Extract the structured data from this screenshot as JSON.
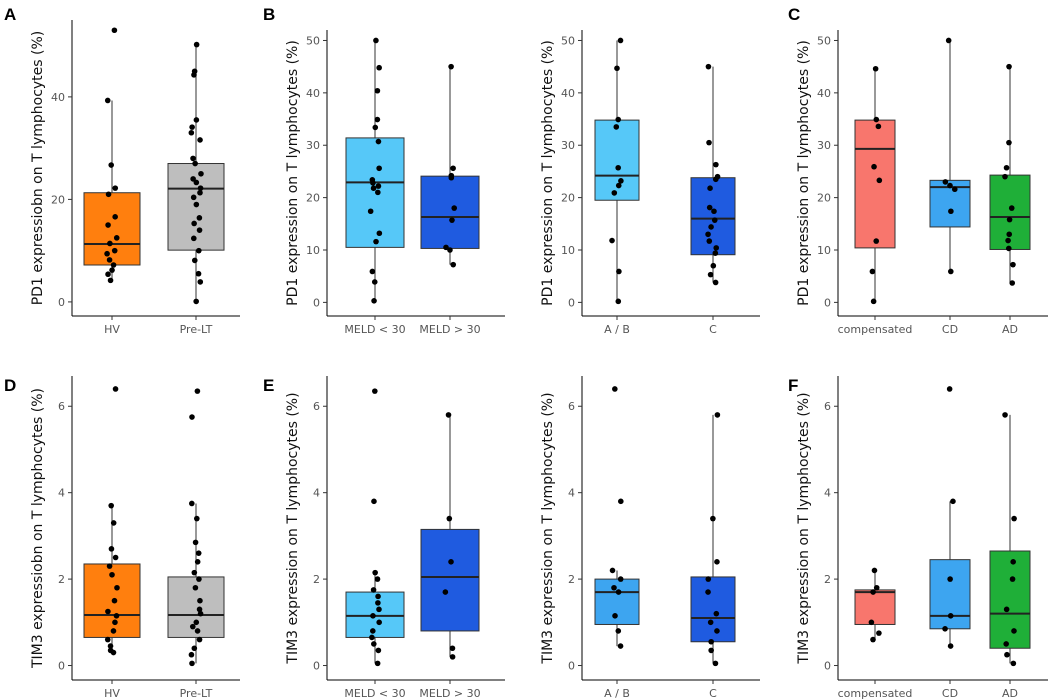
{
  "chart_data": [
    {
      "id": "A-pd1-hv-prelt",
      "letter": "A",
      "type": "box",
      "ylabel": "PD1 expressiobn on T lymphocytes (%)",
      "ylim": [
        0,
        55
      ],
      "yticks": [
        0,
        20,
        40
      ],
      "categories": [
        "HV",
        "Pre-LT"
      ],
      "boxes": [
        {
          "name": "HV",
          "color": "#FF7F0E",
          "q1": 7.2,
          "median": 11.3,
          "q3": 21.3,
          "wlow": 4.2,
          "whigh": 39.3,
          "points": [
            53.0,
            39.3,
            26.7,
            22.2,
            21.0,
            16.6,
            15.0,
            12.5,
            11.4,
            10.0,
            9.4,
            8.2,
            7.2,
            6.2,
            5.4,
            4.2
          ]
        },
        {
          "name": "Pre-LT",
          "color": "#BEBEBE",
          "q1": 10.1,
          "median": 22.1,
          "q3": 27.0,
          "wlow": 0.1,
          "whigh": 50.2,
          "points": [
            50.2,
            45.0,
            44.3,
            35.5,
            34.1,
            33.0,
            31.6,
            28.0,
            27.0,
            25.0,
            24.0,
            23.3,
            22.2,
            21.3,
            20.4,
            19.0,
            16.4,
            15.3,
            14.0,
            12.4,
            10.0,
            8.1,
            5.5,
            3.9,
            0.1
          ]
        }
      ]
    },
    {
      "id": "B1-pd1-meld",
      "letter": "B",
      "type": "box",
      "ylabel": "PD1 expression on T lymphocytes (%)",
      "ylim": [
        0,
        52
      ],
      "yticks": [
        0,
        10,
        20,
        30,
        40,
        50
      ],
      "categories": [
        "MELD < 30",
        "MELD > 30"
      ],
      "boxes": [
        {
          "name": "MELD < 30",
          "color": "#56C8F8",
          "q1": 10.5,
          "median": 22.9,
          "q3": 31.4,
          "wlow": 0.3,
          "whigh": 50.0,
          "points": [
            50.0,
            44.8,
            40.4,
            34.9,
            33.4,
            30.7,
            25.6,
            23.4,
            22.8,
            22.2,
            21.8,
            21.0,
            17.4,
            13.2,
            11.6,
            5.9,
            3.9,
            0.3
          ]
        },
        {
          "name": "MELD > 30",
          "color": "#1F5BE0",
          "q1": 10.3,
          "median": 16.3,
          "q3": 24.1,
          "wlow": 7.2,
          "whigh": 45.0,
          "points": [
            45.0,
            25.6,
            24.2,
            23.8,
            18.0,
            15.7,
            10.5,
            10.0,
            7.2
          ]
        }
      ]
    },
    {
      "id": "B2-pd1-child",
      "letter": "",
      "type": "box",
      "ylabel": "PD1 expression on T lymphocytes (%)",
      "ylim": [
        0,
        52
      ],
      "yticks": [
        0,
        10,
        20,
        30,
        40,
        50
      ],
      "categories": [
        "A / B",
        "C"
      ],
      "boxes": [
        {
          "name": "A / B",
          "color": "#56C8F8",
          "q1": 19.5,
          "median": 24.2,
          "q3": 34.8,
          "wlow": 0.2,
          "whigh": 50.0,
          "points": [
            50.0,
            44.7,
            34.9,
            33.5,
            25.7,
            23.2,
            22.3,
            20.9,
            11.8,
            5.9,
            0.2
          ]
        },
        {
          "name": "C",
          "color": "#1F5BE0",
          "q1": 9.1,
          "median": 16.0,
          "q3": 23.8,
          "wlow": 3.8,
          "whigh": 45.0,
          "points": [
            45.0,
            30.5,
            26.3,
            24.0,
            23.5,
            21.8,
            18.1,
            17.4,
            15.7,
            14.4,
            13.0,
            11.7,
            10.4,
            9.4,
            7.0,
            5.3,
            3.8
          ]
        }
      ]
    },
    {
      "id": "C-pd1-decomp",
      "letter": "C",
      "type": "box",
      "ylabel": "PD1 expression on T lymphocytes (%)",
      "ylim": [
        0,
        52
      ],
      "yticks": [
        0,
        10,
        20,
        30,
        40,
        50
      ],
      "categories": [
        "compensated",
        "CD",
        "AD"
      ],
      "boxes": [
        {
          "name": "compensated",
          "color": "#F8766D",
          "q1": 10.4,
          "median": 29.3,
          "q3": 34.8,
          "wlow": 0.2,
          "whigh": 44.6,
          "points": [
            44.6,
            34.9,
            33.6,
            25.9,
            23.3,
            11.7,
            5.9,
            0.2
          ]
        },
        {
          "name": "CD",
          "color": "#3DA5F0",
          "q1": 14.4,
          "median": 22.0,
          "q3": 23.3,
          "wlow": 5.9,
          "whigh": 50.0,
          "points": [
            50.0,
            23.0,
            22.3,
            21.6,
            17.4,
            5.9
          ]
        },
        {
          "name": "AD",
          "color": "#1FAF38",
          "q1": 10.1,
          "median": 16.3,
          "q3": 24.3,
          "wlow": 3.7,
          "whigh": 45.0,
          "points": [
            45.0,
            30.5,
            25.7,
            24.0,
            18.0,
            15.8,
            13.0,
            11.8,
            10.3,
            7.2,
            3.7
          ]
        }
      ]
    },
    {
      "id": "D-tim3-hv-prelt",
      "letter": "D",
      "type": "box",
      "ylabel": "TIM3 expressiobn on T lymphocytes (%)",
      "ylim": [
        0,
        6.7
      ],
      "yticks": [
        0,
        2,
        4,
        6
      ],
      "categories": [
        "HV",
        "Pre-LT"
      ],
      "boxes": [
        {
          "name": "HV",
          "color": "#FF7F0E",
          "q1": 0.65,
          "median": 1.17,
          "q3": 2.35,
          "wlow": 0.3,
          "whigh": 3.7,
          "points": [
            6.4,
            3.7,
            3.3,
            2.7,
            2.5,
            2.3,
            2.1,
            1.8,
            1.5,
            1.25,
            1.15,
            1.0,
            0.8,
            0.6,
            0.45,
            0.35,
            0.3
          ]
        },
        {
          "name": "Pre-LT",
          "color": "#BEBEBE",
          "q1": 0.65,
          "median": 1.17,
          "q3": 2.05,
          "wlow": 0.05,
          "whigh": 3.75,
          "points": [
            6.35,
            5.75,
            3.75,
            3.4,
            2.85,
            2.6,
            2.4,
            2.15,
            2.0,
            1.8,
            1.5,
            1.3,
            1.2,
            1.0,
            0.9,
            0.8,
            0.6,
            0.4,
            0.25,
            0.05
          ]
        }
      ]
    },
    {
      "id": "E1-tim3-meld",
      "letter": "E",
      "type": "box",
      "ylabel": "TIM3 expression on T lymphocytes (%)",
      "ylim": [
        0,
        6.7
      ],
      "yticks": [
        0,
        2,
        4,
        6
      ],
      "categories": [
        "MELD < 30",
        "MELD > 30"
      ],
      "boxes": [
        {
          "name": "MELD < 30",
          "color": "#56C8F8",
          "q1": 0.65,
          "median": 1.15,
          "q3": 1.7,
          "wlow": 0.05,
          "whigh": 2.15,
          "points": [
            6.35,
            3.8,
            2.15,
            2.0,
            1.75,
            1.6,
            1.45,
            1.3,
            1.15,
            1.0,
            0.8,
            0.65,
            0.5,
            0.35,
            0.05
          ]
        },
        {
          "name": "MELD > 30",
          "color": "#1F5BE0",
          "q1": 0.8,
          "median": 2.05,
          "q3": 3.15,
          "wlow": 0.2,
          "whigh": 5.8,
          "points": [
            5.8,
            3.4,
            2.4,
            1.7,
            0.4,
            0.2
          ]
        }
      ]
    },
    {
      "id": "E2-tim3-child",
      "letter": "",
      "type": "box",
      "ylabel": "TIM3 expression on T lymphocytes (%)",
      "ylim": [
        0,
        6.7
      ],
      "yticks": [
        0,
        2,
        4,
        6
      ],
      "categories": [
        "A / B",
        "C"
      ],
      "boxes": [
        {
          "name": "A / B",
          "color": "#3DA5F0",
          "q1": 0.95,
          "median": 1.7,
          "q3": 2.0,
          "wlow": 0.45,
          "whigh": 2.2,
          "points": [
            6.4,
            3.8,
            2.2,
            2.0,
            1.8,
            1.7,
            1.15,
            0.8,
            0.45
          ]
        },
        {
          "name": "C",
          "color": "#1F5BE0",
          "q1": 0.55,
          "median": 1.1,
          "q3": 2.05,
          "wlow": 0.05,
          "whigh": 5.8,
          "points": [
            5.8,
            3.4,
            2.4,
            2.0,
            1.7,
            1.2,
            1.0,
            0.8,
            0.55,
            0.35,
            0.05
          ]
        }
      ]
    },
    {
      "id": "F-tim3-decomp",
      "letter": "F",
      "type": "box",
      "ylabel": "TIM3 expression on T lymphocytes (%)",
      "ylim": [
        0,
        6.7
      ],
      "yticks": [
        0,
        2,
        4,
        6
      ],
      "categories": [
        "compensated",
        "CD",
        "AD"
      ],
      "boxes": [
        {
          "name": "compensated",
          "color": "#F8766D",
          "q1": 0.95,
          "median": 1.7,
          "q3": 1.75,
          "wlow": 0.6,
          "whigh": 2.2,
          "points": [
            2.2,
            1.8,
            1.7,
            1.0,
            0.75,
            0.6
          ]
        },
        {
          "name": "CD",
          "color": "#3DA5F0",
          "q1": 0.85,
          "median": 1.15,
          "q3": 2.45,
          "wlow": 0.45,
          "whigh": 3.8,
          "points": [
            6.4,
            3.8,
            2.0,
            1.15,
            0.85,
            0.45
          ]
        },
        {
          "name": "AD",
          "color": "#1FAF38",
          "q1": 0.4,
          "median": 1.2,
          "q3": 2.65,
          "wlow": 0.05,
          "whigh": 5.8,
          "points": [
            5.8,
            3.4,
            2.4,
            2.0,
            1.3,
            0.8,
            0.5,
            0.25,
            0.05
          ]
        }
      ]
    }
  ]
}
